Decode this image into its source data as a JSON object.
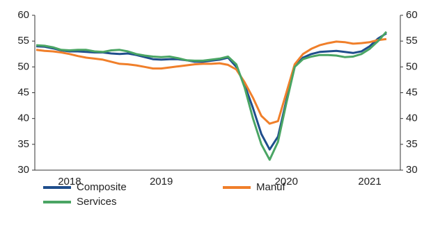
{
  "chart_data": {
    "type": "line",
    "categories": [
      null,
      null,
      null,
      null,
      "2018",
      null,
      null,
      null,
      null,
      null,
      null,
      null,
      null,
      null,
      null,
      "2019",
      null,
      null,
      null,
      null,
      null,
      null,
      null,
      null,
      null,
      null,
      null,
      null,
      null,
      null,
      "2020",
      null,
      null,
      null,
      null,
      null,
      null,
      null,
      null,
      null,
      "2021",
      null,
      null
    ],
    "series": [
      {
        "name": "Composite",
        "color": "#1f4e8c",
        "values": [
          54.0,
          53.9,
          53.6,
          53.2,
          53.0,
          53.0,
          52.9,
          52.8,
          52.8,
          52.6,
          52.5,
          52.6,
          52.3,
          51.9,
          51.5,
          51.4,
          51.5,
          51.5,
          51.3,
          51.0,
          51.0,
          51.2,
          51.4,
          51.8,
          50.0,
          46.5,
          42.0,
          37.0,
          34.0,
          36.5,
          43.5,
          50.0,
          51.8,
          52.5,
          52.9,
          53.0,
          53.1,
          52.9,
          52.7,
          53.0,
          54.0,
          55.5,
          56.5
        ]
      },
      {
        "name": "Manuf",
        "color": "#f07f2a",
        "values": [
          53.3,
          53.1,
          53.0,
          52.8,
          52.5,
          52.1,
          51.8,
          51.6,
          51.4,
          51.0,
          50.6,
          50.5,
          50.3,
          50.0,
          49.7,
          49.7,
          49.9,
          50.1,
          50.3,
          50.5,
          50.6,
          50.6,
          50.7,
          50.4,
          49.5,
          47.0,
          44.0,
          40.5,
          39.0,
          39.5,
          45.0,
          50.5,
          52.5,
          53.5,
          54.2,
          54.6,
          54.9,
          54.8,
          54.5,
          54.6,
          54.8,
          55.2,
          55.4
        ]
      },
      {
        "name": "Services",
        "color": "#4aa564",
        "values": [
          54.2,
          54.1,
          53.8,
          53.3,
          53.2,
          53.3,
          53.3,
          53.0,
          52.9,
          53.2,
          53.3,
          53.0,
          52.5,
          52.2,
          52.0,
          51.9,
          52.0,
          51.7,
          51.3,
          51.2,
          51.2,
          51.4,
          51.6,
          52.0,
          50.5,
          46.0,
          40.0,
          35.0,
          32.0,
          35.5,
          43.0,
          50.0,
          51.5,
          52.0,
          52.3,
          52.3,
          52.2,
          51.9,
          52.0,
          52.5,
          53.5,
          55.0,
          56.8
        ]
      }
    ],
    "ylim": [
      30,
      60
    ],
    "yticks": [
      30,
      35,
      40,
      45,
      50,
      55,
      60
    ],
    "y2lim": [
      30,
      60
    ],
    "y2ticks": [
      30,
      35,
      40,
      45,
      50,
      55,
      60
    ]
  }
}
